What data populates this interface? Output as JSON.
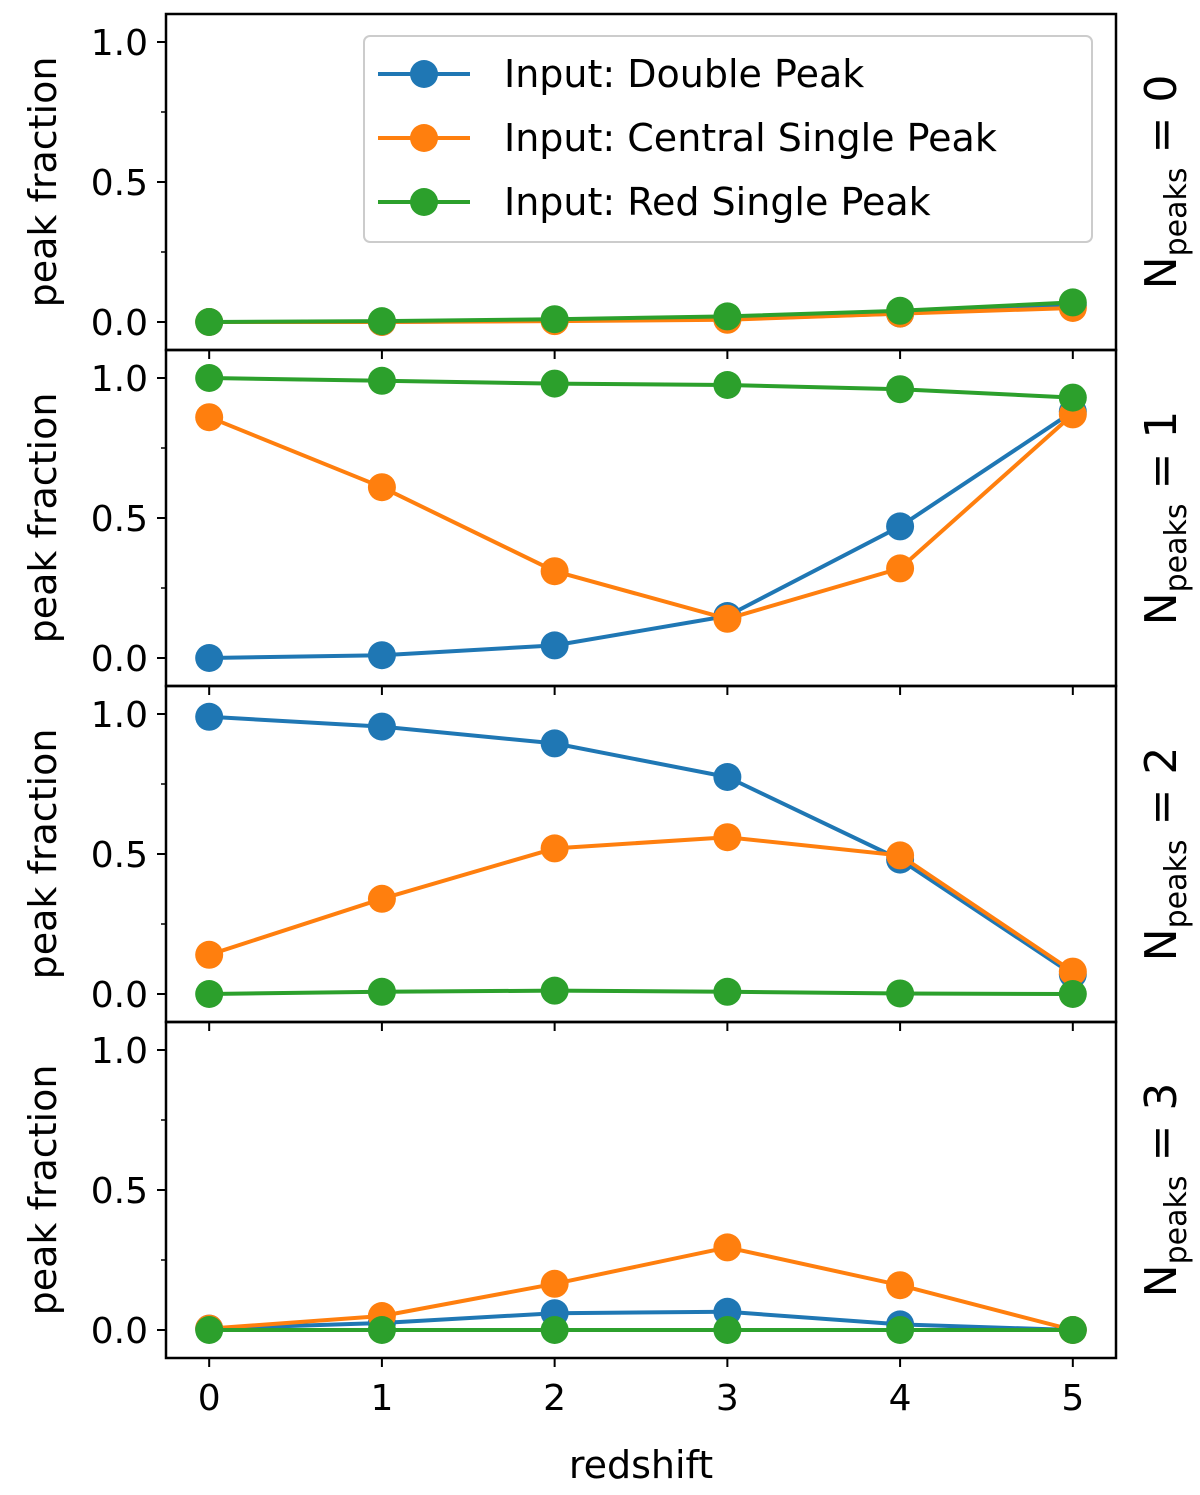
{
  "chart_data": {
    "type": "line",
    "shared_x": [
      0,
      1,
      2,
      3,
      4,
      5
    ],
    "xlabel": "redshift",
    "ylabel": "peak fraction",
    "ylim": [
      -0.1,
      1.1
    ],
    "yticks": [
      "0.0",
      "0.5",
      "1.0"
    ],
    "yticks_values": [
      0.0,
      0.5,
      1.0
    ],
    "xticks": [
      "0",
      "1",
      "2",
      "3",
      "4",
      "5"
    ],
    "legend_location": "top-right of first panel",
    "colors": {
      "double": "#1f77b4",
      "central": "#ff7f0e",
      "red": "#2ca02c"
    },
    "legend": [
      {
        "key": "double",
        "label": "Input: Double Peak"
      },
      {
        "key": "central",
        "label": "Input: Central Single Peak"
      },
      {
        "key": "red",
        "label": "Input: Red Single Peak"
      }
    ],
    "panels": [
      {
        "label_main": "N",
        "label_sub": "peaks",
        "label_rest": " = 0",
        "series": {
          "double": [
            0.0,
            0.0,
            0.005,
            0.01,
            0.03,
            0.06
          ],
          "central": [
            0.0,
            0.0,
            0.003,
            0.008,
            0.03,
            0.05
          ],
          "red": [
            0.0,
            0.003,
            0.01,
            0.02,
            0.04,
            0.07
          ]
        }
      },
      {
        "label_main": "N",
        "label_sub": "peaks",
        "label_rest": " = 1",
        "series": {
          "double": [
            0.0,
            0.01,
            0.045,
            0.15,
            0.47,
            0.88
          ],
          "central": [
            0.86,
            0.61,
            0.31,
            0.14,
            0.32,
            0.87
          ],
          "red": [
            1.0,
            0.99,
            0.98,
            0.975,
            0.96,
            0.93
          ]
        }
      },
      {
        "label_main": "N",
        "label_sub": "peaks",
        "label_rest": " = 2",
        "series": {
          "double": [
            0.99,
            0.955,
            0.895,
            0.775,
            0.48,
            0.07
          ],
          "central": [
            0.14,
            0.34,
            0.52,
            0.56,
            0.495,
            0.08
          ],
          "red": [
            0.0,
            0.008,
            0.012,
            0.008,
            0.002,
            0.0
          ]
        }
      },
      {
        "label_main": "N",
        "label_sub": "peaks",
        "label_rest": " = 3",
        "series": {
          "double": [
            0.005,
            0.025,
            0.06,
            0.065,
            0.02,
            0.0
          ],
          "central": [
            0.005,
            0.05,
            0.165,
            0.295,
            0.16,
            0.0
          ],
          "red": [
            0.0,
            0.0,
            0.0,
            0.0,
            0.0,
            0.0
          ]
        }
      }
    ]
  }
}
